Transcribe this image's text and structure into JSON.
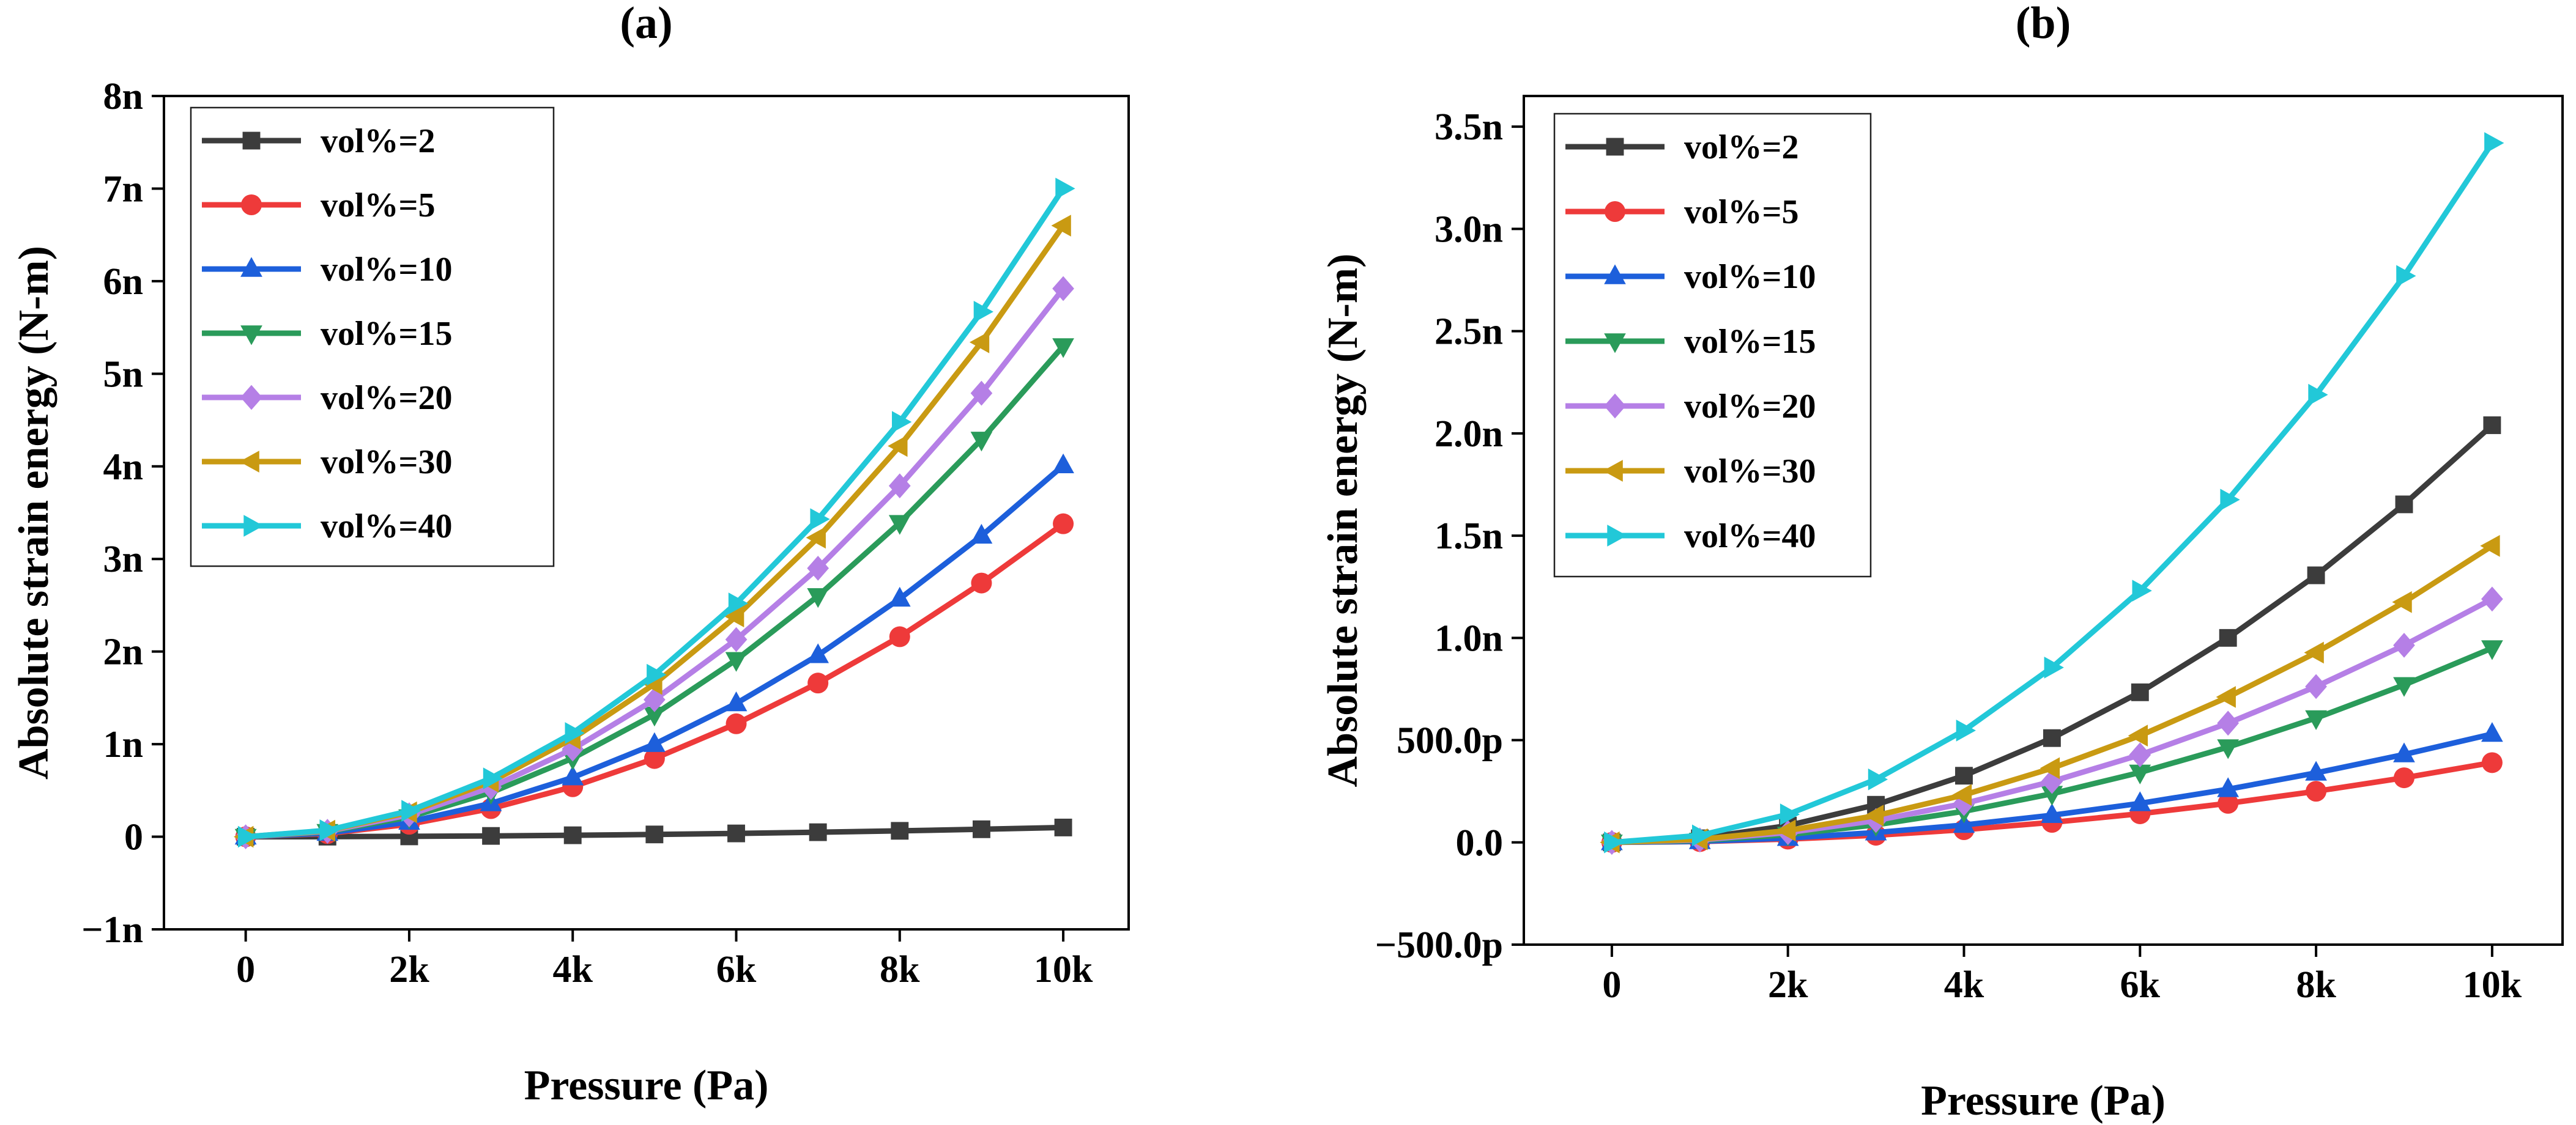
{
  "chart_data": [
    {
      "type": "line",
      "panel_label": "(a)",
      "xlabel": "Pressure (Pa)",
      "ylabel": "Absolute strain energy (N-m)",
      "xlim": [
        -1000,
        10800
      ],
      "ylim": [
        -1,
        8
      ],
      "xticks": [
        0,
        2000,
        4000,
        6000,
        8000,
        10000
      ],
      "xtick_labels": [
        "0",
        "2k",
        "4k",
        "6k",
        "8k",
        "10k"
      ],
      "yticks": [
        -1,
        0,
        1,
        2,
        3,
        4,
        5,
        6,
        7,
        8
      ],
      "ytick_labels": [
        "−1n",
        "0",
        "1n",
        "2n",
        "3n",
        "4n",
        "5n",
        "6n",
        "7n",
        "8n"
      ],
      "legend_position": "top-left",
      "x": [
        0,
        1000,
        2000,
        3000,
        4000,
        5000,
        6000,
        7000,
        8000,
        9000,
        10000
      ],
      "series": [
        {
          "name": "vol%=2",
          "color": "#3c3c3c",
          "marker": "square",
          "values": [
            0,
            0.001,
            0.004,
            0.009,
            0.016,
            0.025,
            0.036,
            0.049,
            0.064,
            0.081,
            0.1
          ]
        },
        {
          "name": "vol%=5",
          "color": "#ee3a3a",
          "marker": "circle",
          "values": [
            0,
            0.034,
            0.135,
            0.304,
            0.54,
            0.845,
            1.22,
            1.66,
            2.16,
            2.74,
            3.38
          ]
        },
        {
          "name": "vol%=10",
          "color": "#1d5fdb",
          "marker": "triangle-up",
          "values": [
            0,
            0.04,
            0.16,
            0.36,
            0.64,
            1.0,
            1.44,
            1.96,
            2.57,
            3.25,
            4.01
          ]
        },
        {
          "name": "vol%=15",
          "color": "#2a9b5a",
          "marker": "triangle-down",
          "values": [
            0,
            0.053,
            0.212,
            0.477,
            0.848,
            1.32,
            1.91,
            2.6,
            3.39,
            4.29,
            5.3
          ]
        },
        {
          "name": "vol%=20",
          "color": "#b57fe6",
          "marker": "diamond",
          "values": [
            0,
            0.059,
            0.237,
            0.533,
            0.947,
            1.48,
            2.13,
            2.9,
            3.79,
            4.79,
            5.92
          ]
        },
        {
          "name": "vol%=30",
          "color": "#c99a12",
          "marker": "triangle-left",
          "values": [
            0,
            0.066,
            0.264,
            0.594,
            1.06,
            1.65,
            2.38,
            3.23,
            4.22,
            5.34,
            6.6
          ]
        },
        {
          "name": "vol%=40",
          "color": "#22c8d8",
          "marker": "triangle-right",
          "values": [
            0,
            0.07,
            0.28,
            0.63,
            1.12,
            1.75,
            2.52,
            3.43,
            4.48,
            5.67,
            7.0
          ]
        }
      ]
    },
    {
      "type": "line",
      "panel_label": "(b)",
      "xlabel": "Pressure (Pa)",
      "ylabel": "Absolute strain energy (N-m)",
      "xlim": [
        -1000,
        10800
      ],
      "ylim": [
        -500,
        3650
      ],
      "xticks": [
        0,
        2000,
        4000,
        6000,
        8000,
        10000
      ],
      "xtick_labels": [
        "0",
        "2k",
        "4k",
        "6k",
        "8k",
        "10k"
      ],
      "yticks": [
        -500,
        0,
        500,
        1000,
        1500,
        2000,
        2500,
        3000,
        3500
      ],
      "ytick_labels": [
        "−500.0p",
        "0.0",
        "500.0p",
        "1.0n",
        "1.5n",
        "2.0n",
        "2.5n",
        "3.0n",
        "3.5n"
      ],
      "legend_position": "top-left",
      "x": [
        0,
        1000,
        2000,
        3000,
        4000,
        5000,
        6000,
        7000,
        8000,
        9000,
        10000
      ],
      "series": [
        {
          "name": "vol%=2",
          "color": "#3c3c3c",
          "marker": "square",
          "values": [
            0,
            20,
            82,
            184,
            326,
            510,
            734,
            1000,
            1306,
            1653,
            2040
          ]
        },
        {
          "name": "vol%=5",
          "color": "#ee3a3a",
          "marker": "circle",
          "values": [
            0,
            4,
            16,
            35,
            62,
            98,
            140,
            191,
            250,
            316,
            390
          ]
        },
        {
          "name": "vol%=10",
          "color": "#1d5fdb",
          "marker": "triangle-up",
          "values": [
            0,
            5,
            21,
            48,
            85,
            133,
            191,
            260,
            340,
            430,
            530
          ]
        },
        {
          "name": "vol%=15",
          "color": "#2a9b5a",
          "marker": "triangle-down",
          "values": [
            0,
            9,
            38,
            86,
            152,
            238,
            342,
            466,
            608,
            770,
            950
          ]
        },
        {
          "name": "vol%=20",
          "color": "#b57fe6",
          "marker": "diamond",
          "values": [
            0,
            12,
            48,
            107,
            190,
            298,
            428,
            583,
            762,
            964,
            1190
          ]
        },
        {
          "name": "vol%=30",
          "color": "#c99a12",
          "marker": "triangle-left",
          "values": [
            0,
            15,
            58,
            131,
            232,
            363,
            522,
            711,
            928,
            1175,
            1450
          ]
        },
        {
          "name": "vol%=40",
          "color": "#22c8d8",
          "marker": "triangle-right",
          "values": [
            0,
            34,
            137,
            308,
            547,
            855,
            1231,
            1676,
            2189,
            2770,
            3420
          ]
        }
      ]
    }
  ]
}
